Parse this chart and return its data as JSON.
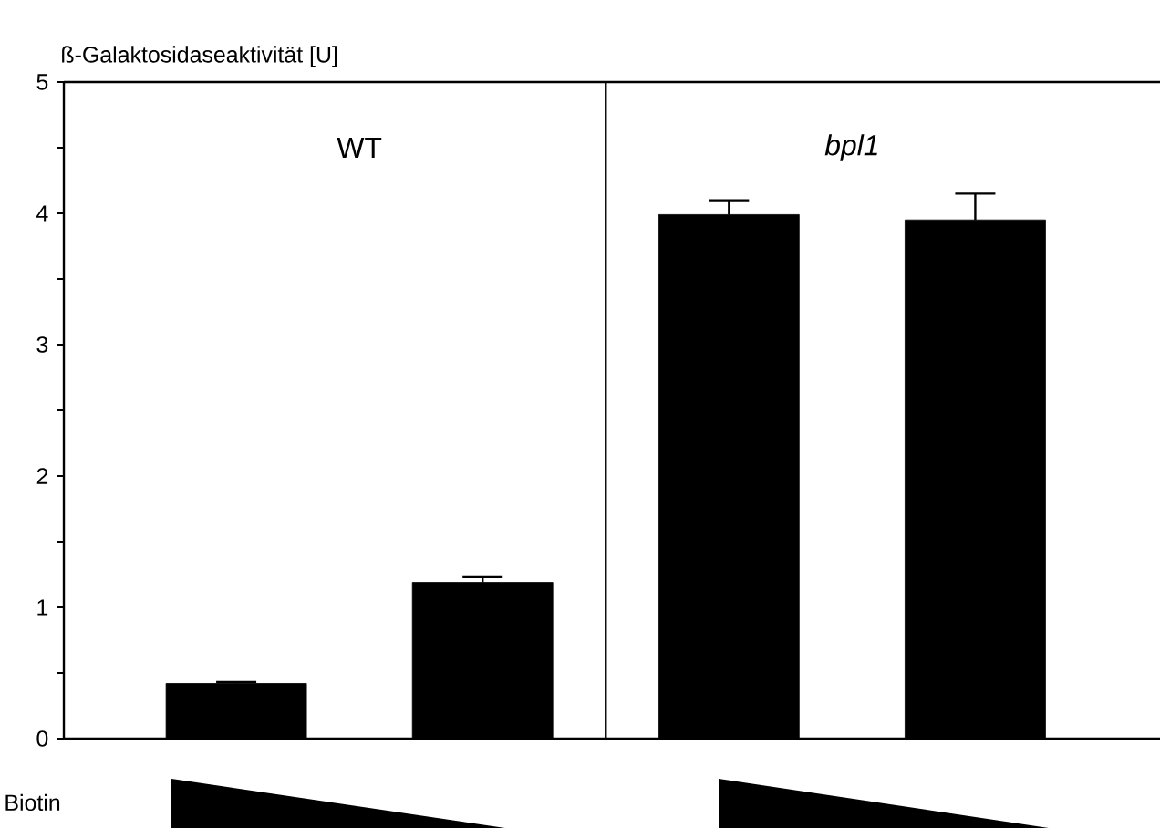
{
  "chart_data": {
    "type": "bar",
    "ylabel": "ß-Galaktosidaseaktivität [U]",
    "categories": [
      null,
      null,
      null,
      null
    ],
    "values": [
      0.42,
      1.19,
      3.99,
      3.95
    ],
    "errors": [
      0.01,
      0.04,
      0.11,
      0.2
    ],
    "color": "#000000",
    "ylim": [
      0,
      5
    ],
    "yticks": [
      0,
      1,
      2,
      3,
      4,
      5
    ],
    "annotations": [
      "WT",
      "bpl1",
      "Biotin"
    ]
  }
}
